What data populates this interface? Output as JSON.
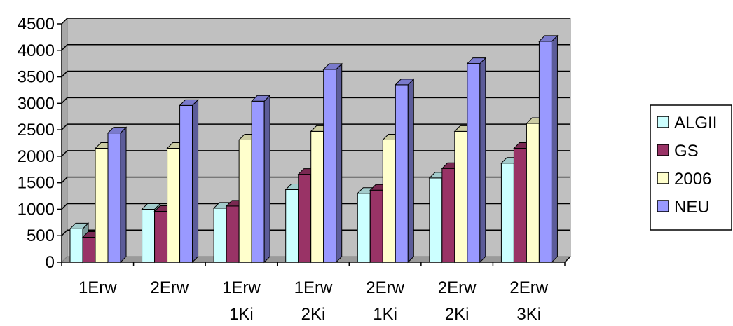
{
  "chart_data": {
    "type": "bar",
    "categories": [
      [
        "1Erw"
      ],
      [
        "2Erw"
      ],
      [
        "1Erw",
        "1Ki"
      ],
      [
        "1Erw",
        "2Ki"
      ],
      [
        "2Erw",
        "1Ki"
      ],
      [
        "2Erw",
        "2Ki"
      ],
      [
        "2Erw",
        "3Ki"
      ]
    ],
    "series": [
      {
        "name": "ALGII",
        "color": "#ccffff",
        "values": [
          630,
          1000,
          1020,
          1370,
          1300,
          1590,
          1870
        ]
      },
      {
        "name": "GS",
        "color": "#993366",
        "values": [
          470,
          960,
          1060,
          1660,
          1360,
          1770,
          2150
        ]
      },
      {
        "name": "2006",
        "color": "#ffffcc",
        "values": [
          2150,
          2150,
          2310,
          2470,
          2310,
          2470,
          2620
        ]
      },
      {
        "name": "NEU",
        "color": "#9999ff",
        "values": [
          2440,
          2960,
          3040,
          3640,
          3350,
          3750,
          4170
        ]
      }
    ],
    "yticks": [
      "0",
      "500",
      "1000",
      "1500",
      "2000",
      "2500",
      "3000",
      "3500",
      "4000",
      "4500"
    ],
    "ylim": [
      0,
      4500
    ],
    "plot_background": "#c0c0c0",
    "grid": true,
    "legend_position": "right",
    "three_d": true
  }
}
